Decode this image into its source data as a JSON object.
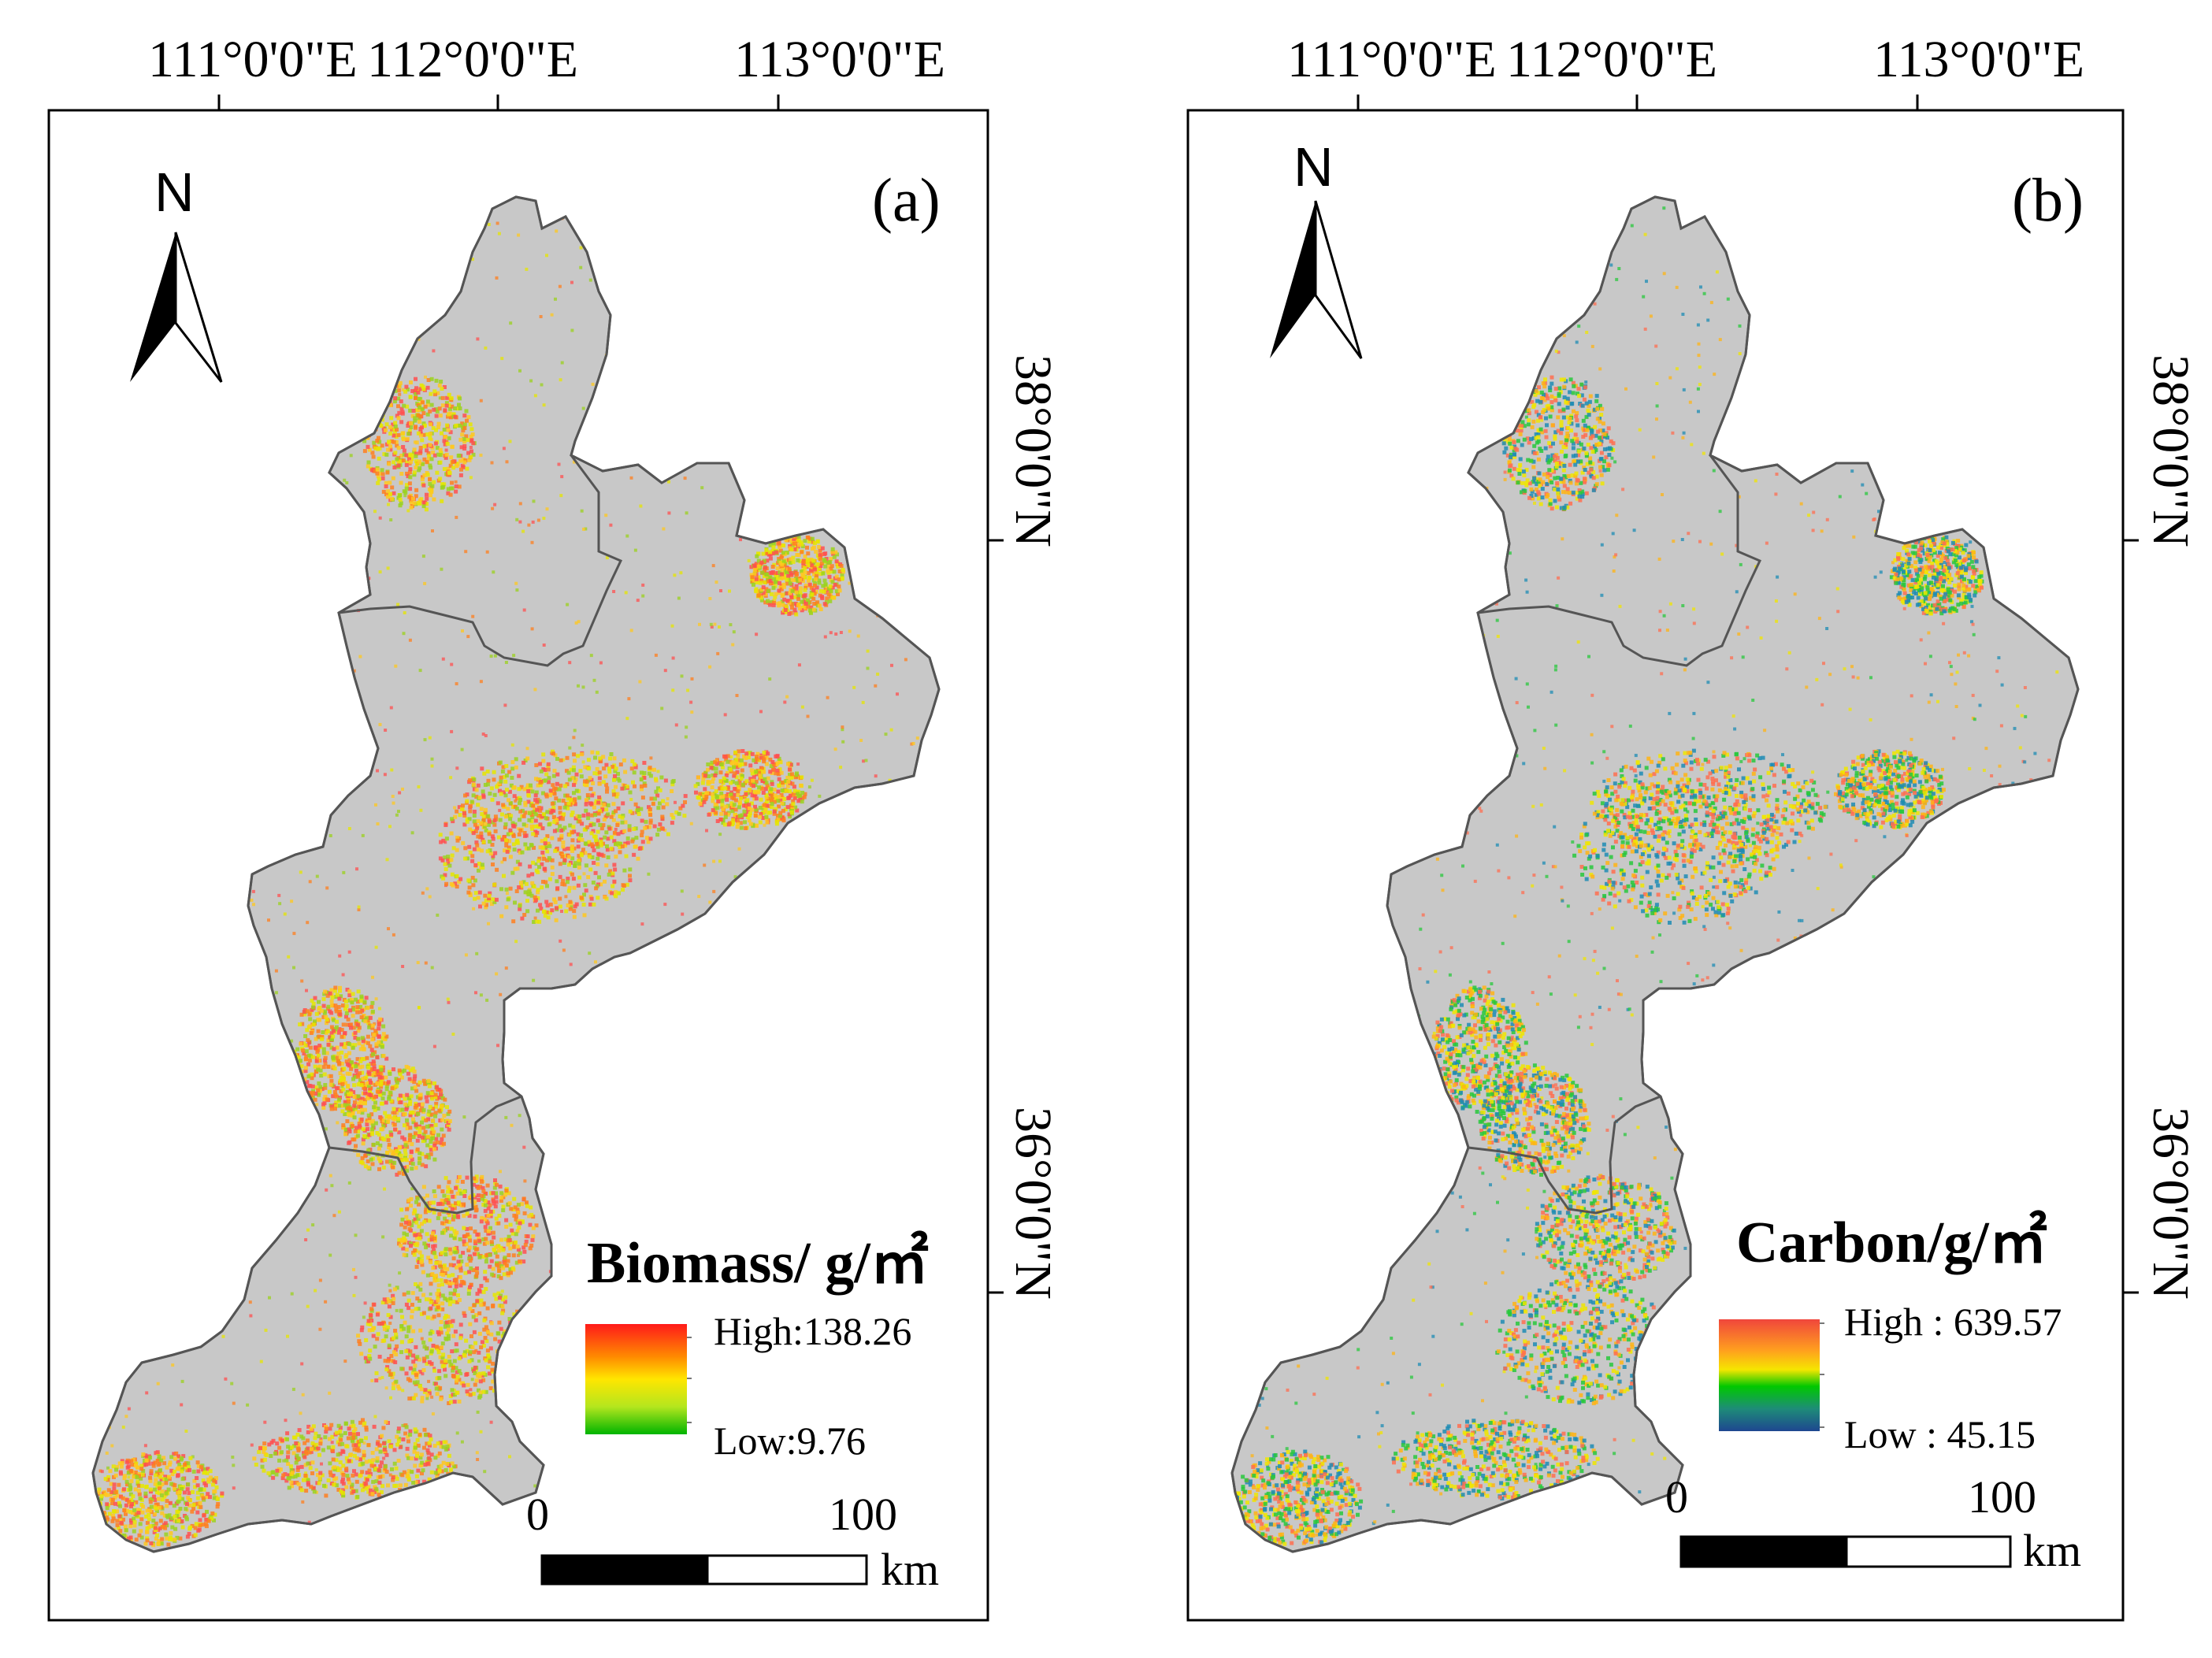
{
  "panels": [
    {
      "id": "a",
      "panel_label": "(a)",
      "lon_labels": [
        "111°0'0\"E",
        "112°0'0\"E",
        "113°0'0\"E"
      ],
      "lat_labels": [
        "38°0'0\"N",
        "36°0'0\"N"
      ],
      "north_label": "N",
      "legend": {
        "title": "Biomass/ g/㎡",
        "high_label": "High:138.26",
        "low_label": "Low:9.76",
        "ramp_colors": [
          "#ff1a1a",
          "#ff8c00",
          "#ffe600",
          "#b4e61e",
          "#00b400"
        ]
      },
      "scale_bar": {
        "start_label": "0",
        "end_label": "100",
        "unit_label": "km"
      },
      "dot_palette": [
        "#ff7f1e",
        "#ffc81e",
        "#e6e600",
        "#9bd21e",
        "#ff5050"
      ]
    },
    {
      "id": "b",
      "panel_label": "(b)",
      "lon_labels": [
        "111°0'0\"E",
        "112°0'0\"E",
        "113°0'0\"E"
      ],
      "lat_labels": [
        "38°0'0\"N",
        "36°0'0\"N"
      ],
      "north_label": "N",
      "legend": {
        "title": "Carbon/g/㎡",
        "high_label": "High : 639.57",
        "low_label": "Low : 45.15",
        "ramp_colors": [
          "#f0463c",
          "#ffa01e",
          "#f5e600",
          "#00c800",
          "#1e8c78",
          "#1e4690"
        ]
      },
      "scale_bar": {
        "start_label": "0",
        "end_label": "100",
        "unit_label": "km"
      },
      "dot_palette": [
        "#ffb414",
        "#f0e600",
        "#28c83c",
        "#1e8cb4",
        "#ff6e50"
      ]
    }
  ],
  "colors": {
    "land": "#c8c8c8",
    "boundary": "#555555"
  }
}
